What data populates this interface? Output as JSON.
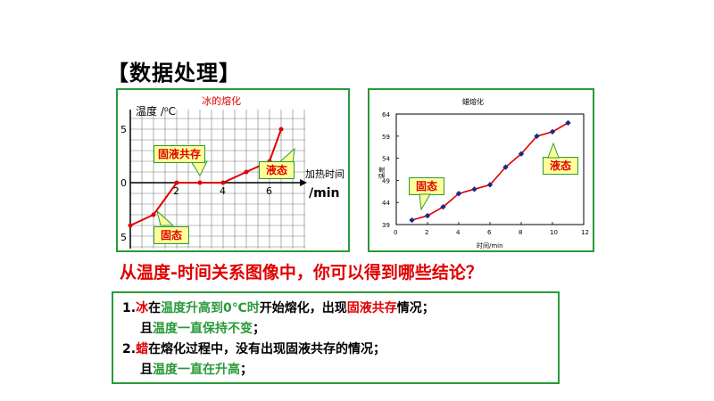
{
  "heading": "【数据处理】",
  "ice_chart": {
    "title": "冰的熔化",
    "ylabel": "温度 /⁰C",
    "xlabel_top": "加热时间",
    "xlabel_unit": "/min",
    "y_ticks": [
      "5",
      "0",
      "5"
    ],
    "x_ticks": [
      "2",
      "4",
      "6"
    ],
    "callouts": {
      "mixed": "固液共存",
      "liquid": "液态",
      "solid": "固态"
    },
    "colors": {
      "line": "#e00000",
      "grid": "#7a7a7a",
      "callout_fill": "#ffff99"
    }
  },
  "wax_chart": {
    "title": "蜡熔化",
    "ylabel": "温度",
    "xlabel": "时间/min",
    "y_ticks": [
      "64",
      "59",
      "54",
      "49",
      "44",
      "39"
    ],
    "x_ticks": [
      "0",
      "2",
      "4",
      "6",
      "8",
      "10",
      "12"
    ],
    "callouts": {
      "solid": "固态",
      "liquid": "液态"
    },
    "colors": {
      "line": "#e00000",
      "marker": "#1a2a8a"
    }
  },
  "chart_data": [
    {
      "type": "line",
      "title": "冰的熔化",
      "xlabel": "加热时间 /min",
      "ylabel": "温度 /⁰C",
      "x": [
        0,
        1,
        2,
        3,
        4,
        5,
        6,
        6.5
      ],
      "series": [
        {
          "values": [
            -4,
            -3,
            0,
            0,
            0,
            1,
            2,
            5
          ]
        }
      ],
      "xlim": [
        0,
        7
      ],
      "ylim": [
        -5,
        5
      ],
      "grid": true
    },
    {
      "type": "line",
      "title": "蜡熔化",
      "xlabel": "时间/min",
      "ylabel": "温度",
      "x": [
        1,
        2,
        3,
        4,
        5,
        6,
        7,
        8,
        9,
        10,
        11
      ],
      "series": [
        {
          "values": [
            40,
            41,
            43,
            46,
            47,
            48,
            52,
            55,
            59,
            60,
            62
          ]
        }
      ],
      "xlim": [
        0,
        12
      ],
      "ylim": [
        39,
        64
      ],
      "grid": false
    }
  ],
  "question": "从温度-时间关系图像中，你可以得到哪些结论？",
  "conclusions": {
    "c1": {
      "num": "1.",
      "subject": "冰",
      "t1": "在",
      "cond": "温度升高到0℃时",
      "t2": "开始熔化，出现",
      "state": "固液共存",
      "t3": "情况；",
      "line2_prefix": "且",
      "line2_key": "温度一直保持不变",
      "line2_suffix": "；"
    },
    "c2": {
      "num": "2.",
      "subject": "蜡",
      "t1": "在熔化过程中，没有出现固液共存的情况；",
      "line2_prefix": "且",
      "line2_key": "温度一直在升高",
      "line2_suffix": "；"
    }
  }
}
